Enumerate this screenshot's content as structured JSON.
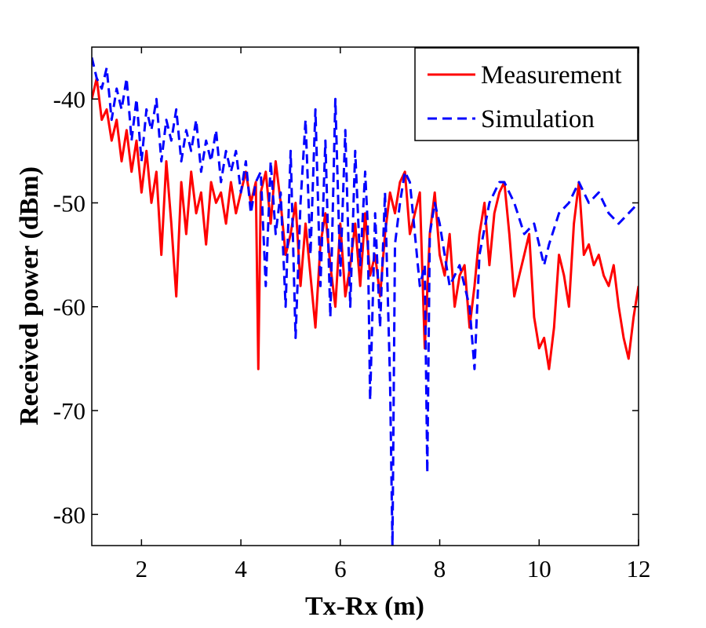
{
  "chart_data": {
    "type": "line",
    "title": "",
    "xlabel": "Tx-Rx (m)",
    "ylabel": "Received power (dBm)",
    "xlim": [
      1,
      12
    ],
    "ylim": [
      -83,
      -35
    ],
    "grid": false,
    "legend_position": "top-right",
    "xticks": [
      2,
      4,
      6,
      8,
      10,
      12
    ],
    "yticks": [
      -80,
      -70,
      -60,
      -50,
      -40
    ],
    "xtick_labels": [
      "2",
      "4",
      "6",
      "8",
      "10",
      "12"
    ],
    "ytick_labels": [
      "-80",
      "-70",
      "-60",
      "-50",
      "-40"
    ],
    "series": [
      {
        "name": "Measurement",
        "color": "#ff0000",
        "style": "solid",
        "x": [
          1.0,
          1.1,
          1.2,
          1.3,
          1.4,
          1.5,
          1.6,
          1.7,
          1.8,
          1.9,
          2.0,
          2.1,
          2.2,
          2.3,
          2.4,
          2.5,
          2.6,
          2.7,
          2.8,
          2.9,
          3.0,
          3.1,
          3.2,
          3.3,
          3.4,
          3.5,
          3.6,
          3.7,
          3.8,
          3.9,
          4.0,
          4.1,
          4.2,
          4.3,
          4.35,
          4.4,
          4.5,
          4.6,
          4.7,
          4.8,
          4.9,
          5.0,
          5.1,
          5.2,
          5.3,
          5.4,
          5.5,
          5.6,
          5.7,
          5.8,
          5.9,
          6.0,
          6.1,
          6.2,
          6.3,
          6.4,
          6.5,
          6.6,
          6.7,
          6.8,
          6.9,
          7.0,
          7.1,
          7.2,
          7.3,
          7.4,
          7.5,
          7.6,
          7.7,
          7.8,
          7.9,
          8.0,
          8.1,
          8.2,
          8.3,
          8.4,
          8.5,
          8.6,
          8.7,
          8.8,
          8.9,
          9.0,
          9.1,
          9.2,
          9.3,
          9.4,
          9.5,
          9.6,
          9.7,
          9.8,
          9.9,
          10.0,
          10.1,
          10.2,
          10.3,
          10.4,
          10.5,
          10.6,
          10.7,
          10.8,
          10.9,
          11.0,
          11.1,
          11.2,
          11.3,
          11.4,
          11.5,
          11.6,
          11.7,
          11.8,
          11.9,
          12.0
        ],
        "y": [
          -40,
          -38,
          -42,
          -41,
          -44,
          -42,
          -46,
          -43,
          -47,
          -44,
          -49,
          -45,
          -50,
          -47,
          -55,
          -46,
          -52,
          -59,
          -48,
          -53,
          -47,
          -51,
          -49,
          -54,
          -48,
          -50,
          -49,
          -52,
          -48,
          -51,
          -49,
          -47,
          -50,
          -48,
          -66,
          -49,
          -47,
          -52,
          -46,
          -50,
          -55,
          -53,
          -50,
          -58,
          -52,
          -57,
          -62,
          -54,
          -51,
          -56,
          -60,
          -52,
          -59,
          -56,
          -52,
          -58,
          -51,
          -57,
          -55,
          -59,
          -53,
          -49,
          -51,
          -48,
          -47,
          -53,
          -51,
          -49,
          -64,
          -53,
          -49,
          -55,
          -57,
          -53,
          -60,
          -57,
          -56,
          -62,
          -58,
          -53,
          -50,
          -56,
          -51,
          -49,
          -48,
          -53,
          -59,
          -57,
          -55,
          -53,
          -61,
          -64,
          -63,
          -66,
          -62,
          -55,
          -57,
          -60,
          -52,
          -48,
          -55,
          -54,
          -56,
          -55,
          -57,
          -58,
          -56,
          -60,
          -63,
          -65,
          -61,
          -58
        ]
      },
      {
        "name": "Simulation",
        "color": "#0000ff",
        "style": "dashed",
        "x": [
          1.0,
          1.1,
          1.2,
          1.3,
          1.4,
          1.5,
          1.6,
          1.7,
          1.8,
          1.9,
          2.0,
          2.1,
          2.2,
          2.3,
          2.4,
          2.5,
          2.6,
          2.7,
          2.8,
          2.9,
          3.0,
          3.1,
          3.2,
          3.3,
          3.4,
          3.5,
          3.6,
          3.7,
          3.8,
          3.9,
          4.0,
          4.1,
          4.2,
          4.3,
          4.4,
          4.5,
          4.6,
          4.7,
          4.8,
          4.9,
          5.0,
          5.1,
          5.2,
          5.3,
          5.4,
          5.5,
          5.6,
          5.7,
          5.8,
          5.9,
          6.0,
          6.1,
          6.2,
          6.3,
          6.4,
          6.5,
          6.55,
          6.6,
          6.7,
          6.8,
          6.9,
          7.0,
          7.05,
          7.1,
          7.2,
          7.3,
          7.4,
          7.5,
          7.6,
          7.7,
          7.75,
          7.8,
          7.9,
          8.0,
          8.2,
          8.4,
          8.6,
          8.7,
          8.8,
          9.0,
          9.2,
          9.3,
          9.5,
          9.7,
          9.9,
          10.1,
          10.2,
          10.4,
          10.6,
          10.8,
          11.0,
          11.2,
          11.4,
          11.6,
          11.8,
          12.0
        ],
        "y": [
          -36,
          -38,
          -39,
          -37,
          -42,
          -39,
          -41,
          -38,
          -44,
          -40,
          -46,
          -41,
          -43,
          -40,
          -46,
          -42,
          -44,
          -41,
          -46,
          -43,
          -45,
          -42,
          -47,
          -44,
          -46,
          -43,
          -48,
          -45,
          -47,
          -45,
          -49,
          -46,
          -51,
          -48,
          -47,
          -58,
          -46,
          -53,
          -49,
          -60,
          -45,
          -63,
          -50,
          -42,
          -55,
          -41,
          -58,
          -44,
          -61,
          -40,
          -57,
          -43,
          -60,
          -45,
          -56,
          -47,
          -52,
          -69,
          -51,
          -62,
          -49,
          -67,
          -83,
          -54,
          -50,
          -47,
          -48,
          -53,
          -58,
          -56,
          -76,
          -53,
          -50,
          -52,
          -58,
          -56,
          -60,
          -66,
          -55,
          -50,
          -48,
          -48,
          -50,
          -53,
          -52,
          -56,
          -54,
          -51,
          -50,
          -48,
          -50,
          -49,
          -51,
          -52,
          -51,
          -50
        ]
      }
    ]
  }
}
